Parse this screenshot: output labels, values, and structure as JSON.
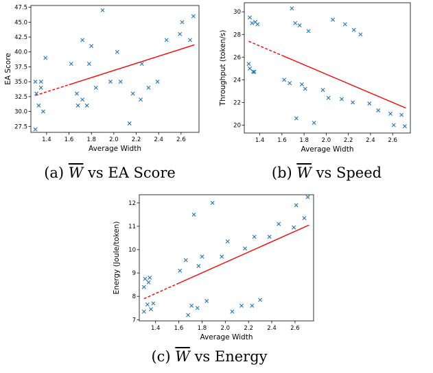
{
  "chart_data": [
    {
      "type": "scatter",
      "xlabel": "Average Width",
      "ylabel": "EA Score",
      "caption": {
        "prefix": "(a) ",
        "symbol": "W",
        "suffix": " vs EA Score"
      },
      "xlim": [
        1.26,
        2.76
      ],
      "ylim": [
        26.5,
        47.8
      ],
      "xticks": [
        "1.4",
        "1.6",
        "1.8",
        "2.0",
        "2.2",
        "2.4",
        "2.6"
      ],
      "yticks": [
        "27.5",
        "30.0",
        "32.5",
        "35.0",
        "37.5",
        "40.0",
        "42.5",
        "45.0",
        "47.5"
      ],
      "marker_color": "#1f77b4",
      "fit_color": "#ff0000",
      "fit_line": {
        "x0": 1.3,
        "y0": 32.7,
        "x1": 2.72,
        "y1": 41.2,
        "dashed_until": 1.6
      },
      "points": [
        {
          "x": 1.3,
          "y": 27.0
        },
        {
          "x": 1.31,
          "y": 33.0
        },
        {
          "x": 1.3,
          "y": 35.0
        },
        {
          "x": 1.33,
          "y": 31.0
        },
        {
          "x": 1.35,
          "y": 34.0
        },
        {
          "x": 1.35,
          "y": 35.0
        },
        {
          "x": 1.37,
          "y": 30.0
        },
        {
          "x": 1.39,
          "y": 39.0
        },
        {
          "x": 1.62,
          "y": 38.0
        },
        {
          "x": 1.67,
          "y": 33.0
        },
        {
          "x": 1.68,
          "y": 31.0
        },
        {
          "x": 1.72,
          "y": 42.0
        },
        {
          "x": 1.72,
          "y": 32.0
        },
        {
          "x": 1.76,
          "y": 31.0
        },
        {
          "x": 1.78,
          "y": 38.0
        },
        {
          "x": 1.8,
          "y": 41.0
        },
        {
          "x": 1.84,
          "y": 34.0
        },
        {
          "x": 1.9,
          "y": 47.0
        },
        {
          "x": 1.97,
          "y": 35.0
        },
        {
          "x": 2.03,
          "y": 40.0
        },
        {
          "x": 2.06,
          "y": 35.0
        },
        {
          "x": 2.14,
          "y": 28.0
        },
        {
          "x": 2.17,
          "y": 33.0
        },
        {
          "x": 2.24,
          "y": 32.0
        },
        {
          "x": 2.25,
          "y": 38.0
        },
        {
          "x": 2.31,
          "y": 34.0
        },
        {
          "x": 2.39,
          "y": 35.0
        },
        {
          "x": 2.47,
          "y": 42.0
        },
        {
          "x": 2.59,
          "y": 43.0
        },
        {
          "x": 2.61,
          "y": 45.0
        },
        {
          "x": 2.68,
          "y": 42.0
        },
        {
          "x": 2.71,
          "y": 46.0
        }
      ]
    },
    {
      "type": "scatter",
      "xlabel": "Average Width",
      "ylabel": "Throughput (token/s)",
      "caption": {
        "prefix": "(b) ",
        "symbol": "W",
        "suffix": " vs Speed"
      },
      "xlim": [
        1.26,
        2.76
      ],
      "ylim": [
        19.3,
        30.8
      ],
      "xticks": [
        "1.4",
        "1.6",
        "1.8",
        "2.0",
        "2.2",
        "2.4",
        "2.6"
      ],
      "yticks": [
        "20",
        "22",
        "24",
        "26",
        "28",
        "30"
      ],
      "marker_color": "#1f77b4",
      "fit_color": "#ff0000",
      "fit_line": {
        "x0": 1.3,
        "y0": 27.4,
        "x1": 2.72,
        "y1": 21.5,
        "dashed_until": 1.6
      },
      "points": [
        {
          "x": 1.31,
          "y": 29.5
        },
        {
          "x": 1.33,
          "y": 29.0
        },
        {
          "x": 1.36,
          "y": 29.1
        },
        {
          "x": 1.38,
          "y": 28.9
        },
        {
          "x": 1.3,
          "y": 25.4
        },
        {
          "x": 1.31,
          "y": 25.0
        },
        {
          "x": 1.34,
          "y": 24.7
        },
        {
          "x": 1.35,
          "y": 24.7
        },
        {
          "x": 1.62,
          "y": 24.0
        },
        {
          "x": 1.67,
          "y": 23.7
        },
        {
          "x": 1.69,
          "y": 30.3
        },
        {
          "x": 1.72,
          "y": 29.0
        },
        {
          "x": 1.73,
          "y": 20.6
        },
        {
          "x": 1.76,
          "y": 28.8
        },
        {
          "x": 1.78,
          "y": 23.6
        },
        {
          "x": 1.81,
          "y": 23.2
        },
        {
          "x": 1.84,
          "y": 28.3
        },
        {
          "x": 1.89,
          "y": 20.2
        },
        {
          "x": 1.97,
          "y": 23.1
        },
        {
          "x": 2.02,
          "y": 22.4
        },
        {
          "x": 2.06,
          "y": 29.3
        },
        {
          "x": 2.14,
          "y": 22.3
        },
        {
          "x": 2.17,
          "y": 28.9
        },
        {
          "x": 2.24,
          "y": 22.0
        },
        {
          "x": 2.25,
          "y": 28.4
        },
        {
          "x": 2.31,
          "y": 28.0
        },
        {
          "x": 2.39,
          "y": 21.9
        },
        {
          "x": 2.47,
          "y": 21.3
        },
        {
          "x": 2.58,
          "y": 21.0
        },
        {
          "x": 2.61,
          "y": 20.0
        },
        {
          "x": 2.68,
          "y": 20.9
        },
        {
          "x": 2.71,
          "y": 19.9
        }
      ]
    },
    {
      "type": "scatter",
      "xlabel": "Average Width",
      "ylabel": "Energy (Joule/token)",
      "caption": {
        "prefix": "(c) ",
        "symbol": "W",
        "suffix": " vs Energy"
      },
      "xlim": [
        1.26,
        2.76
      ],
      "ylim": [
        6.95,
        12.35
      ],
      "xticks": [
        "1.4",
        "1.6",
        "1.8",
        "2.0",
        "2.2",
        "2.4",
        "2.6"
      ],
      "yticks": [
        "7",
        "8",
        "9",
        "10",
        "11",
        "12"
      ],
      "marker_color": "#1f77b4",
      "fit_color": "#ff0000",
      "fit_line": {
        "x0": 1.3,
        "y0": 7.9,
        "x1": 2.72,
        "y1": 11.05,
        "dashed_until": 1.6
      },
      "points": [
        {
          "x": 1.3,
          "y": 8.4
        },
        {
          "x": 1.31,
          "y": 8.75
        },
        {
          "x": 1.34,
          "y": 8.6
        },
        {
          "x": 1.35,
          "y": 8.8
        },
        {
          "x": 1.3,
          "y": 7.35
        },
        {
          "x": 1.33,
          "y": 7.65
        },
        {
          "x": 1.36,
          "y": 7.45
        },
        {
          "x": 1.38,
          "y": 7.7
        },
        {
          "x": 1.61,
          "y": 9.1
        },
        {
          "x": 1.66,
          "y": 9.55
        },
        {
          "x": 1.68,
          "y": 7.2
        },
        {
          "x": 1.71,
          "y": 7.6
        },
        {
          "x": 1.73,
          "y": 11.5
        },
        {
          "x": 1.76,
          "y": 7.5
        },
        {
          "x": 1.77,
          "y": 9.3
        },
        {
          "x": 1.8,
          "y": 9.7
        },
        {
          "x": 1.84,
          "y": 7.8
        },
        {
          "x": 1.89,
          "y": 12.0
        },
        {
          "x": 1.97,
          "y": 9.7
        },
        {
          "x": 2.02,
          "y": 10.35
        },
        {
          "x": 2.06,
          "y": 7.35
        },
        {
          "x": 2.14,
          "y": 7.6
        },
        {
          "x": 2.17,
          "y": 10.05
        },
        {
          "x": 2.23,
          "y": 7.6
        },
        {
          "x": 2.25,
          "y": 10.55
        },
        {
          "x": 2.3,
          "y": 7.85
        },
        {
          "x": 2.38,
          "y": 10.55
        },
        {
          "x": 2.46,
          "y": 11.1
        },
        {
          "x": 2.59,
          "y": 10.95
        },
        {
          "x": 2.61,
          "y": 11.9
        },
        {
          "x": 2.68,
          "y": 11.35
        },
        {
          "x": 2.71,
          "y": 12.25
        }
      ]
    }
  ]
}
